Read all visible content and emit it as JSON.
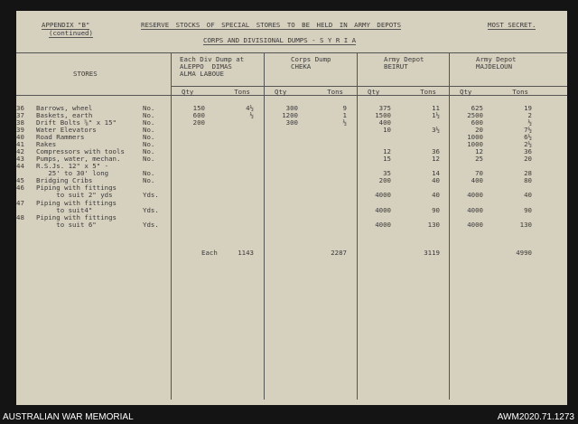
{
  "header": {
    "appendix": "APPENDIX \"B\"",
    "continued": "(continued)",
    "title": "RESERVE STOCKS OF SPECIAL STORES TO BE HELD IN ARMY DEPOTS",
    "classification": "MOST SECRET.",
    "subtitle": "CORPS AND DIVISIONAL DUMPS - S Y R I A"
  },
  "columns": {
    "stores": "STORES",
    "groups": [
      {
        "lines": [
          "Each Div Dump at",
          "ALEPPO  DIMAS",
          "ALMA LABOUE"
        ]
      },
      {
        "lines": [
          "Corps Dump",
          "CHEKA"
        ]
      },
      {
        "lines": [
          "Army Depot",
          "BEIRUT"
        ]
      },
      {
        "lines": [
          "Army Depot",
          "MAJDELOUN"
        ]
      }
    ],
    "qty": "Qty",
    "tons": "Tons"
  },
  "rows": [
    {
      "no": "36",
      "lines": [
        "Barrows, wheel"
      ],
      "unit": "No.",
      "values": [
        "150",
        "4½",
        "300",
        "9",
        "375",
        "11",
        "625",
        "19"
      ]
    },
    {
      "no": "37",
      "lines": [
        "Baskets, earth"
      ],
      "unit": "No.",
      "values": [
        "600",
        "½",
        "1200",
        "1",
        "1500",
        "1½",
        "2500",
        "2"
      ]
    },
    {
      "no": "38",
      "lines": [
        "Drift Bolts ⅝\" x 15\""
      ],
      "unit": "No.",
      "values": [
        "200",
        "",
        "300",
        "½",
        "400",
        "",
        "600",
        "½"
      ]
    },
    {
      "no": "39",
      "lines": [
        "Water Elevators"
      ],
      "unit": "No.",
      "values": [
        "",
        "",
        "",
        "",
        "10",
        "3½",
        "20",
        "7½"
      ]
    },
    {
      "no": "40",
      "lines": [
        "Road Rammers"
      ],
      "unit": "No.",
      "values": [
        "",
        "",
        "",
        "",
        "",
        "",
        "1000",
        "6½"
      ]
    },
    {
      "no": "41",
      "lines": [
        "Rakes"
      ],
      "unit": "No.",
      "values": [
        "",
        "",
        "",
        "",
        "",
        "",
        "1000",
        "2½"
      ]
    },
    {
      "no": "42",
      "lines": [
        "Compressors with tools"
      ],
      "unit": "No.",
      "values": [
        "",
        "",
        "",
        "",
        "12",
        "36",
        "12",
        "36"
      ]
    },
    {
      "no": "43",
      "lines": [
        "Pumps, water, mechan."
      ],
      "unit": "No.",
      "values": [
        "",
        "",
        "",
        "",
        "15",
        "12",
        "25",
        "20"
      ]
    },
    {
      "no": "44",
      "lines": [
        "R.S.Js. 12\" x 5\" -",
        "   25' to 30' long"
      ],
      "unit": "No.",
      "values": [
        "",
        "",
        "",
        "",
        "35",
        "14",
        "70",
        "28"
      ]
    },
    {
      "no": "45",
      "lines": [
        "Bridging Cribs"
      ],
      "unit": "No.",
      "values": [
        "",
        "",
        "",
        "",
        "200",
        "40",
        "400",
        "80"
      ]
    },
    {
      "no": "46",
      "lines": [
        "Piping with fittings",
        "     to suit 2\" yds"
      ],
      "unit": "Yds.",
      "values": [
        "",
        "",
        "",
        "",
        "4000",
        "40",
        "4000",
        "40"
      ]
    },
    {
      "no": "47",
      "lines": [
        "Piping with fittings",
        "     to suit4\""
      ],
      "unit": "Yds.",
      "values": [
        "",
        "",
        "",
        "",
        "4000",
        "90",
        "4000",
        "90"
      ]
    },
    {
      "no": "48",
      "lines": [
        "Piping with fittings",
        "     to suit 6\""
      ],
      "unit": "Yds.",
      "values": [
        "",
        "",
        "",
        "",
        "4000",
        "130",
        "4000",
        "130"
      ]
    }
  ],
  "totals": {
    "label": "Each",
    "values": [
      "1143",
      "2287",
      "3119",
      "4990"
    ]
  },
  "footer": {
    "left": "AUSTRALIAN WAR MEMORIAL",
    "right": "AWM2020.71.1273"
  }
}
